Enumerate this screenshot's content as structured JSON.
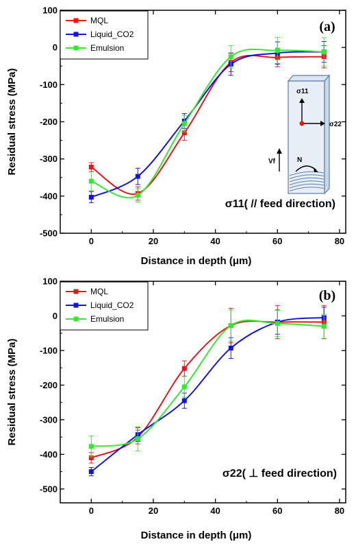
{
  "chart_data": [
    {
      "type": "line",
      "panel_label": "(a)",
      "annotation": "σ11( // feed direction)",
      "xlabel": "Distance in depth (μm)",
      "ylabel": "Residual stress (MPa)",
      "xlim": [
        -10,
        82
      ],
      "ylim": [
        -500,
        100
      ],
      "xticks": [
        0,
        20,
        40,
        60,
        80
      ],
      "yticks": [
        100,
        0,
        -100,
        -200,
        -300,
        -400,
        -500
      ],
      "x": [
        0,
        15,
        30,
        45,
        60,
        75
      ],
      "legend_position": "top-left",
      "series": [
        {
          "name": "MQL",
          "color": "#e8151b",
          "values": [
            -322,
            -393,
            -230,
            -40,
            -27,
            -25
          ],
          "errors": [
            12,
            18,
            20,
            25,
            25,
            30
          ]
        },
        {
          "name": "Liquid_CO2",
          "color": "#1515d8",
          "values": [
            -403,
            -347,
            -198,
            -45,
            -15,
            -12
          ],
          "errors": [
            15,
            22,
            20,
            30,
            30,
            28
          ]
        },
        {
          "name": "Emulsion",
          "color": "#33e833",
          "values": [
            -360,
            -398,
            -205,
            -25,
            -8,
            -12
          ],
          "errors": [
            25,
            18,
            22,
            30,
            35,
            38
          ]
        }
      ],
      "inset": {
        "sigma11": "σ11",
        "sigma22": "σ22",
        "vf": "Vf",
        "n": "N"
      }
    },
    {
      "type": "line",
      "panel_label": "(b)",
      "annotation": "σ22( ⊥ feed direction)",
      "xlabel": "Distance in depth (μm)",
      "ylabel": "Residual stress (MPa)",
      "xlim": [
        -10,
        82
      ],
      "ylim": [
        -540,
        100
      ],
      "xticks": [
        0,
        20,
        40,
        60,
        80
      ],
      "yticks": [
        100,
        0,
        -100,
        -200,
        -300,
        -400,
        -500
      ],
      "x": [
        0,
        15,
        30,
        45,
        60,
        75
      ],
      "legend_position": "top-left",
      "series": [
        {
          "name": "MQL",
          "color": "#e8151b",
          "values": [
            -410,
            -350,
            -152,
            -28,
            -18,
            -18
          ],
          "errors": [
            15,
            20,
            22,
            50,
            48,
            48
          ]
        },
        {
          "name": "Liquid_CO2",
          "color": "#1515d8",
          "values": [
            -450,
            -343,
            -245,
            -93,
            -18,
            -5
          ],
          "errors": [
            12,
            20,
            22,
            30,
            35,
            30
          ]
        },
        {
          "name": "Emulsion",
          "color": "#33e833",
          "values": [
            -377,
            -355,
            -205,
            -28,
            -22,
            -30
          ],
          "errors": [
            30,
            35,
            30,
            45,
            38,
            35
          ]
        }
      ]
    }
  ]
}
